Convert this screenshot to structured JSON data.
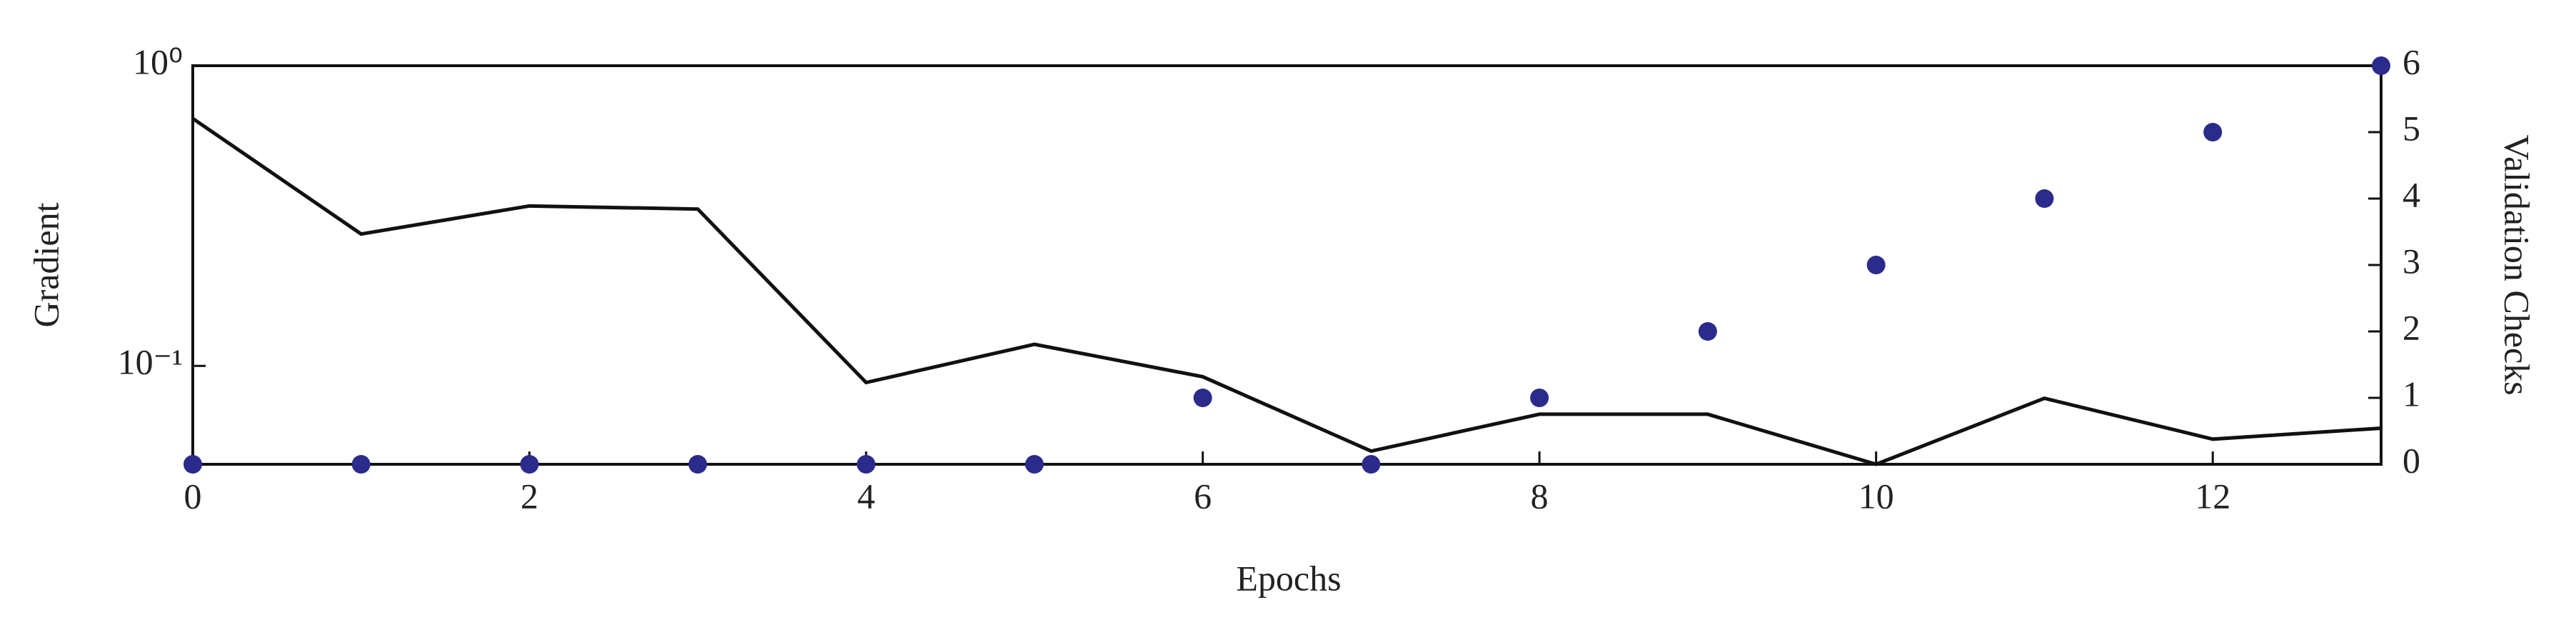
{
  "chart_data": {
    "type": "line",
    "xlabel": "Epochs",
    "ylabel": "Gradient",
    "y2label": "Validation Checks",
    "x": [
      0,
      1,
      2,
      3,
      4,
      5,
      6,
      7,
      8,
      9,
      10,
      11,
      12,
      13
    ],
    "xlim": [
      0,
      13
    ],
    "xticks": [
      0,
      2,
      4,
      6,
      8,
      10,
      12
    ],
    "ylim": [
      0.047,
      1
    ],
    "yscale": "log",
    "yticks": [
      {
        "value": 1,
        "label": "10⁰"
      },
      {
        "value": 0.1,
        "label": "10⁻¹"
      }
    ],
    "y2lim": [
      0,
      6
    ],
    "y2ticks": [
      0,
      1,
      2,
      3,
      4,
      5,
      6
    ],
    "series": [
      {
        "type": "line",
        "color": "#111111",
        "values": [
          0.667,
          0.275,
          0.341,
          0.333,
          0.088,
          0.118,
          0.092,
          0.052,
          0.069,
          0.069,
          0.047,
          0.078,
          0.057,
          0.062
        ]
      },
      {
        "type": "scatter",
        "axis": "y2",
        "color": "#2b2b8c",
        "values": [
          0,
          0,
          0,
          0,
          0,
          0,
          1,
          0,
          1,
          2,
          3,
          4,
          5,
          6
        ]
      }
    ]
  }
}
